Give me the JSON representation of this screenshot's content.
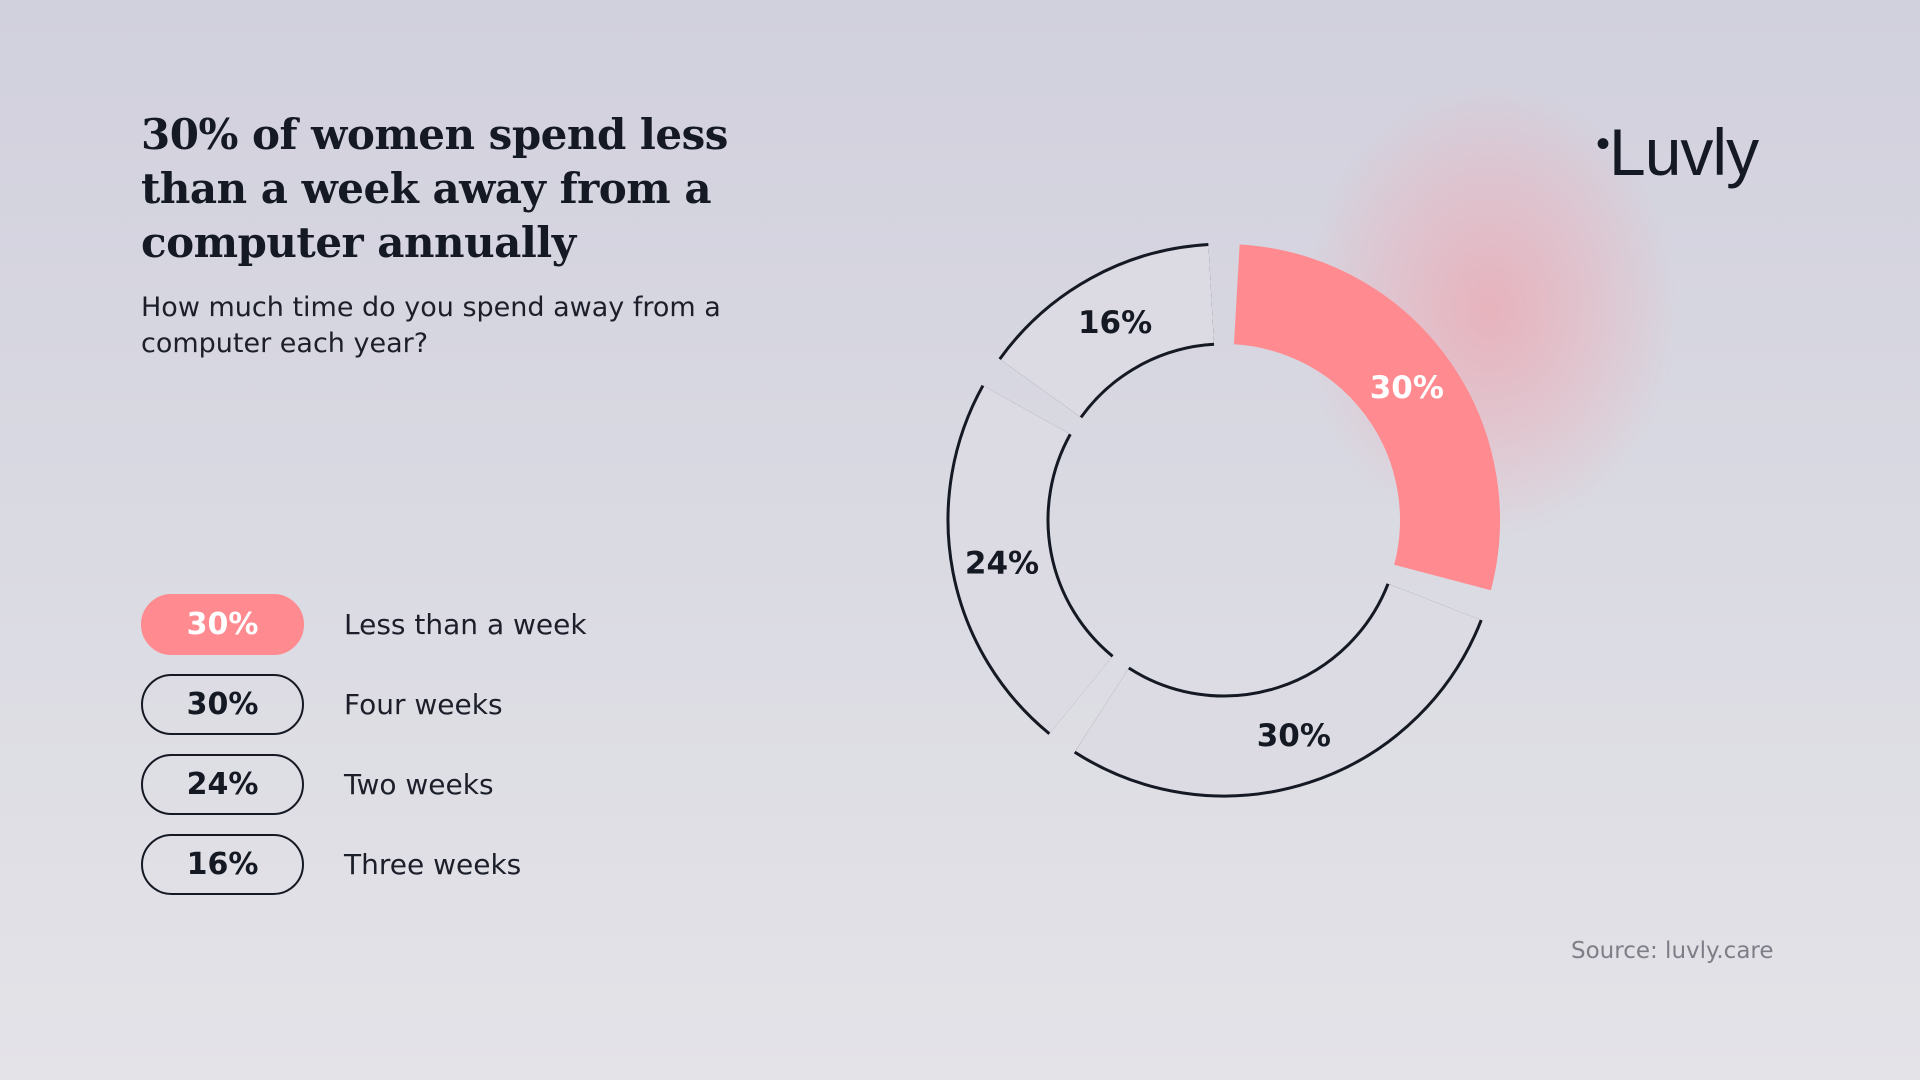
{
  "header": {
    "title": "30% of women spend less than a week away from a computer annually",
    "subtitle": "How much time do you spend away from a computer each year?"
  },
  "brand": {
    "logo_text": "Luvly",
    "logo_dot": "•"
  },
  "footer": {
    "source": "Source: luvly.care"
  },
  "colors": {
    "accent": "#ff8a8f",
    "ink": "#151923",
    "muted": "#7d7e88"
  },
  "legend": [
    {
      "value_label": "30%",
      "label": "Less than a week",
      "highlighted": true
    },
    {
      "value_label": "30%",
      "label": "Four weeks",
      "highlighted": false
    },
    {
      "value_label": "24%",
      "label": "Two weeks",
      "highlighted": false
    },
    {
      "value_label": "16%",
      "label": "Three weeks",
      "highlighted": false
    }
  ],
  "chart_data": {
    "type": "pie",
    "variant": "donut",
    "title": "30% of women spend less than a week away from a computer annually",
    "categories": [
      "Less than a week",
      "Four weeks",
      "Two weeks",
      "Three weeks"
    ],
    "values": [
      30,
      30,
      24,
      16
    ],
    "labels": [
      "30%",
      "30%",
      "24%",
      "16%"
    ],
    "unit": "%",
    "highlighted": [
      "Less than a week"
    ],
    "legend_position": "left"
  }
}
